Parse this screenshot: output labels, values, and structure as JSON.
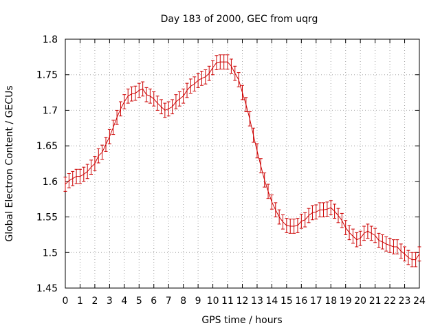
{
  "chart_data": {
    "type": "line",
    "title": "Day 183 of 2000, GEC from uqrg",
    "xlabel": "GPS time / hours",
    "ylabel": "Global Electron Content / GECUs",
    "xlim": [
      0,
      24
    ],
    "ylim": [
      1.45,
      1.8
    ],
    "grid": true,
    "error_bars": true,
    "series_color": "#cc0000",
    "x_ticks": [
      "0",
      "1",
      "2",
      "3",
      "4",
      "5",
      "6",
      "7",
      "8",
      "9",
      "10",
      "11",
      "12",
      "13",
      "14",
      "15",
      "16",
      "17",
      "18",
      "19",
      "20",
      "21",
      "22",
      "23",
      "24"
    ],
    "y_ticks": [
      "1.45",
      "1.5",
      "1.55",
      "1.6",
      "1.65",
      "1.7",
      "1.75",
      "1.8"
    ],
    "error": 0.01,
    "series": [
      {
        "x": [
          0.0,
          0.25,
          0.5,
          0.75,
          1.0,
          1.25,
          1.5,
          1.75,
          2.0,
          2.25,
          2.5,
          2.75,
          3.0,
          3.25,
          3.5,
          3.75,
          4.0,
          4.25,
          4.5,
          4.75,
          5.0,
          5.25,
          5.5,
          5.75,
          6.0,
          6.25,
          6.5,
          6.75,
          7.0,
          7.25,
          7.5,
          7.75,
          8.0,
          8.25,
          8.5,
          8.75,
          9.0,
          9.25,
          9.5,
          9.75,
          10.0,
          10.25,
          10.5,
          10.75,
          11.0,
          11.25,
          11.5,
          11.75,
          12.0,
          12.25,
          12.5,
          12.75,
          13.0,
          13.25,
          13.5,
          13.75,
          14.0,
          14.25,
          14.5,
          14.75,
          15.0,
          15.25,
          15.5,
          15.75,
          16.0,
          16.25,
          16.5,
          16.75,
          17.0,
          17.25,
          17.5,
          17.75,
          18.0,
          18.25,
          18.5,
          18.75,
          19.0,
          19.25,
          19.5,
          19.75,
          20.0,
          20.25,
          20.5,
          20.75,
          21.0,
          21.25,
          21.5,
          21.75,
          22.0,
          22.25,
          22.5,
          22.75,
          23.0,
          23.25,
          23.5,
          23.75,
          24.0
        ],
        "y": [
          1.596,
          1.601,
          1.604,
          1.607,
          1.607,
          1.61,
          1.614,
          1.62,
          1.625,
          1.636,
          1.641,
          1.652,
          1.663,
          1.676,
          1.69,
          1.702,
          1.712,
          1.72,
          1.723,
          1.724,
          1.728,
          1.73,
          1.722,
          1.72,
          1.716,
          1.71,
          1.705,
          1.7,
          1.702,
          1.705,
          1.712,
          1.716,
          1.72,
          1.728,
          1.734,
          1.737,
          1.742,
          1.745,
          1.747,
          1.752,
          1.76,
          1.767,
          1.768,
          1.768,
          1.768,
          1.762,
          1.752,
          1.743,
          1.725,
          1.708,
          1.688,
          1.665,
          1.643,
          1.622,
          1.602,
          1.586,
          1.571,
          1.56,
          1.55,
          1.543,
          1.538,
          1.537,
          1.537,
          1.538,
          1.544,
          1.546,
          1.552,
          1.556,
          1.557,
          1.56,
          1.56,
          1.561,
          1.563,
          1.558,
          1.552,
          1.545,
          1.535,
          1.528,
          1.523,
          1.518,
          1.52,
          1.527,
          1.53,
          1.527,
          1.524,
          1.517,
          1.515,
          1.512,
          1.51,
          1.508,
          1.508,
          1.502,
          1.498,
          1.493,
          1.49,
          1.49,
          1.498
        ]
      }
    ]
  }
}
